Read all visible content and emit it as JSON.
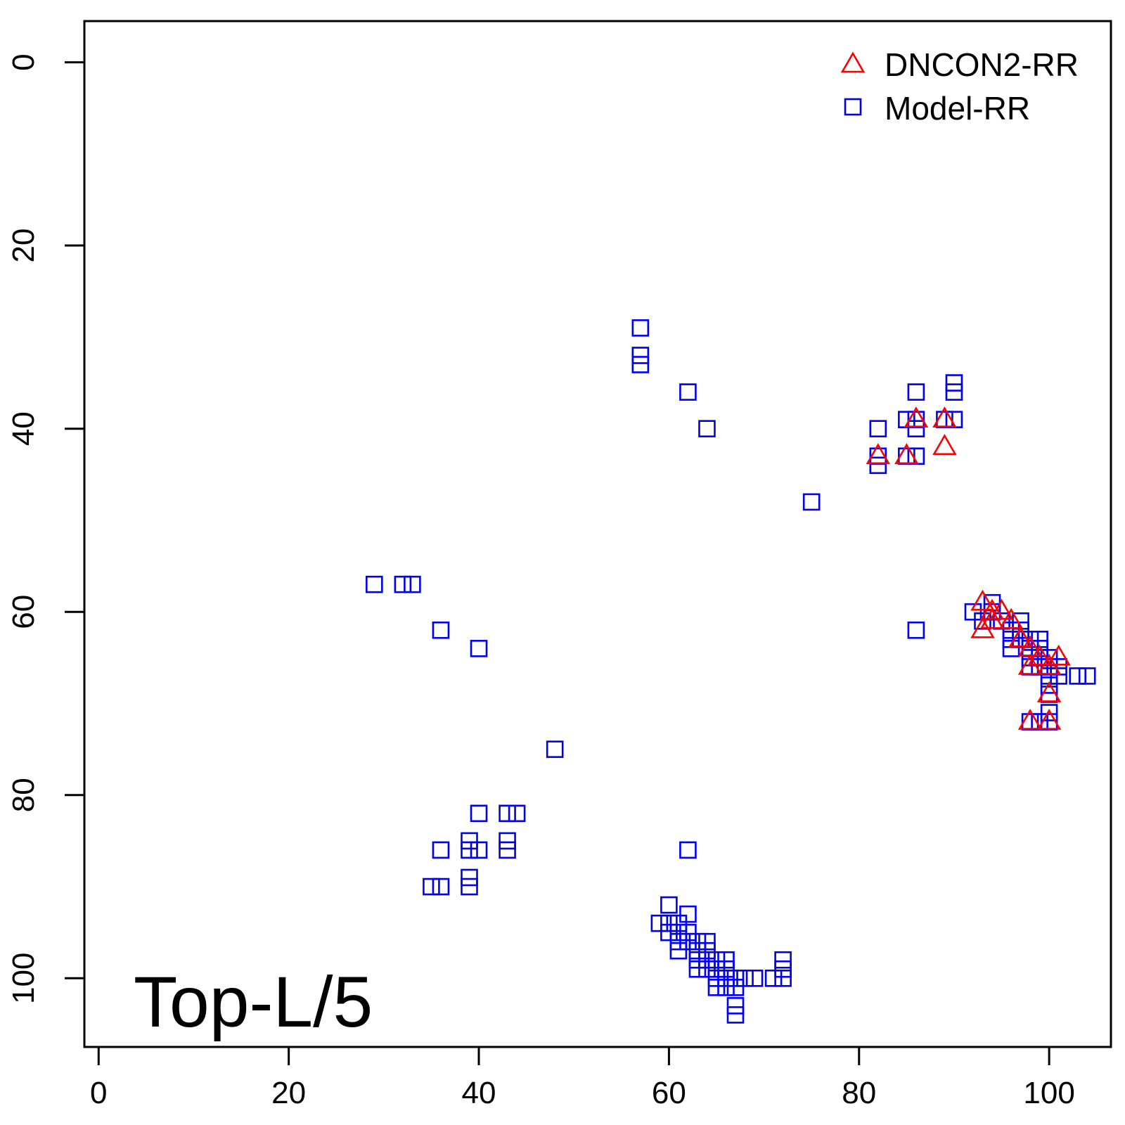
{
  "chart_data": {
    "type": "scatter",
    "title": "",
    "xlabel": "",
    "ylabel": "",
    "xlim": [
      -1.5,
      106.5
    ],
    "ylim": [
      -4.5,
      107.5
    ],
    "y_reversed": true,
    "grid": false,
    "x_ticks": [
      0,
      20,
      40,
      60,
      80,
      100
    ],
    "y_ticks": [
      0,
      20,
      40,
      60,
      80,
      100
    ],
    "annotation": "Top-L/5",
    "legend_position": "top-right",
    "series": [
      {
        "name": "DNCON2-RR",
        "marker": "triangle",
        "color": "#ff0000",
        "points": [
          [
            82,
            43
          ],
          [
            85,
            43
          ],
          [
            86,
            39
          ],
          [
            89,
            39
          ],
          [
            89,
            42
          ],
          [
            93,
            59
          ],
          [
            93,
            62
          ],
          [
            94,
            60
          ],
          [
            94,
            61
          ],
          [
            95,
            60
          ],
          [
            96,
            61
          ],
          [
            97,
            63
          ],
          [
            98,
            64
          ],
          [
            98,
            66
          ],
          [
            99,
            65
          ],
          [
            100,
            66
          ],
          [
            101,
            65
          ],
          [
            100,
            69
          ],
          [
            98,
            72
          ],
          [
            100,
            72
          ]
        ]
      },
      {
        "name": "Model-RR",
        "marker": "square",
        "color": "#0000ee",
        "points": [
          [
            57,
            29
          ],
          [
            57,
            32
          ],
          [
            57,
            33
          ],
          [
            62,
            36
          ],
          [
            64,
            40
          ],
          [
            82,
            40
          ],
          [
            82,
            43
          ],
          [
            82,
            44
          ],
          [
            85,
            39
          ],
          [
            85,
            43
          ],
          [
            86,
            36
          ],
          [
            86,
            39
          ],
          [
            86,
            40
          ],
          [
            86,
            43
          ],
          [
            86,
            62
          ],
          [
            89,
            39
          ],
          [
            90,
            35
          ],
          [
            90,
            36
          ],
          [
            90,
            39
          ],
          [
            75,
            48
          ],
          [
            29,
            57
          ],
          [
            32,
            57
          ],
          [
            33,
            57
          ],
          [
            36,
            62
          ],
          [
            40,
            64
          ],
          [
            48,
            75
          ],
          [
            40,
            82
          ],
          [
            43,
            82
          ],
          [
            44,
            82
          ],
          [
            36,
            86
          ],
          [
            39,
            85
          ],
          [
            39,
            86
          ],
          [
            40,
            86
          ],
          [
            43,
            85
          ],
          [
            43,
            86
          ],
          [
            35,
            90
          ],
          [
            36,
            90
          ],
          [
            39,
            89
          ],
          [
            39,
            90
          ],
          [
            62,
            86
          ],
          [
            60,
            92
          ],
          [
            59,
            94
          ],
          [
            60,
            94
          ],
          [
            60,
            95
          ],
          [
            61,
            94
          ],
          [
            61,
            95
          ],
          [
            61,
            96
          ],
          [
            61,
            97
          ],
          [
            62,
            93
          ],
          [
            62,
            95
          ],
          [
            62,
            96
          ],
          [
            63,
            96
          ],
          [
            63,
            97
          ],
          [
            63,
            98
          ],
          [
            63,
            99
          ],
          [
            64,
            96
          ],
          [
            64,
            97
          ],
          [
            64,
            98
          ],
          [
            64,
            99
          ],
          [
            65,
            98
          ],
          [
            65,
            99
          ],
          [
            65,
            100
          ],
          [
            65,
            101
          ],
          [
            66,
            98
          ],
          [
            66,
            99
          ],
          [
            66,
            100
          ],
          [
            66,
            101
          ],
          [
            67,
            100
          ],
          [
            67,
            101
          ],
          [
            67,
            103
          ],
          [
            67,
            104
          ],
          [
            68,
            100
          ],
          [
            69,
            100
          ],
          [
            71,
            100
          ],
          [
            72,
            98
          ],
          [
            72,
            99
          ],
          [
            72,
            100
          ],
          [
            92,
            60
          ],
          [
            93,
            61
          ],
          [
            94,
            59
          ],
          [
            94,
            60
          ],
          [
            95,
            61
          ],
          [
            96,
            62
          ],
          [
            96,
            63
          ],
          [
            96,
            64
          ],
          [
            97,
            61
          ],
          [
            97,
            62
          ],
          [
            97,
            63
          ],
          [
            98,
            63
          ],
          [
            98,
            64
          ],
          [
            98,
            65
          ],
          [
            98,
            66
          ],
          [
            99,
            63
          ],
          [
            99,
            64
          ],
          [
            99,
            65
          ],
          [
            99,
            66
          ],
          [
            100,
            65
          ],
          [
            100,
            66
          ],
          [
            100,
            67
          ],
          [
            100,
            68
          ],
          [
            100,
            69
          ],
          [
            100,
            71
          ],
          [
            100,
            72
          ],
          [
            101,
            66
          ],
          [
            101,
            67
          ],
          [
            103,
            67
          ],
          [
            104,
            67
          ],
          [
            98,
            72
          ],
          [
            99,
            72
          ]
        ]
      }
    ]
  }
}
